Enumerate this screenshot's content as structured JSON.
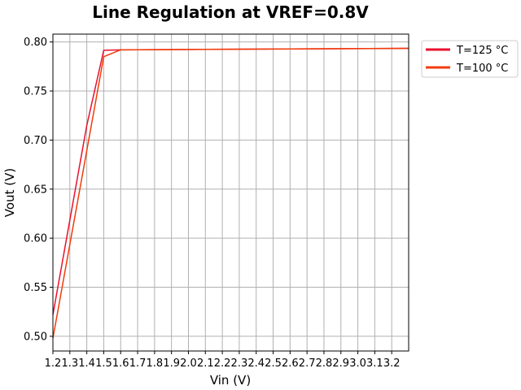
{
  "chart_data": {
    "type": "line",
    "title": "Line Regulation at VREF=0.8V",
    "xlabel": "Vin (V)",
    "ylabel": "Vout (V)",
    "xlim": [
      1.2,
      3.3
    ],
    "ylim": [
      0.485,
      0.808
    ],
    "grid": true,
    "legend_position": "outside-top-right",
    "x_ticks": [
      1.2,
      1.3,
      1.4,
      1.5,
      1.6,
      1.7,
      1.8,
      1.9,
      2.0,
      2.1,
      2.2,
      2.3,
      2.4,
      2.5,
      2.6,
      2.7,
      2.8,
      2.9,
      3.0,
      3.1,
      3.2
    ],
    "x_tick_labels": [
      "1.2",
      "1.3",
      "1.4",
      "1.5",
      "1.6",
      "1.7",
      "1.8",
      "1.9",
      "2.0",
      "2.1",
      "2.2",
      "2.3",
      "2.4",
      "2.5",
      "2.6",
      "2.7",
      "2.8",
      "2.9",
      "3.0",
      "3.1",
      "3.2"
    ],
    "y_ticks": [
      0.5,
      0.55,
      0.6,
      0.65,
      0.7,
      0.75,
      0.8
    ],
    "y_tick_labels": [
      "0.50",
      "0.55",
      "0.60",
      "0.65",
      "0.70",
      "0.75",
      "0.80"
    ],
    "series": [
      {
        "name": "T=125 °C",
        "color": "#e8112d",
        "x": [
          1.2,
          1.4,
          1.5,
          1.6,
          3.3
        ],
        "y": [
          0.522,
          0.715,
          0.7915,
          0.792,
          0.7935
        ]
      },
      {
        "name": "T=100 °C",
        "color": "#f03c0a",
        "x": [
          1.2,
          1.5,
          1.6,
          3.3
        ],
        "y": [
          0.498,
          0.785,
          0.792,
          0.7935
        ]
      }
    ]
  }
}
